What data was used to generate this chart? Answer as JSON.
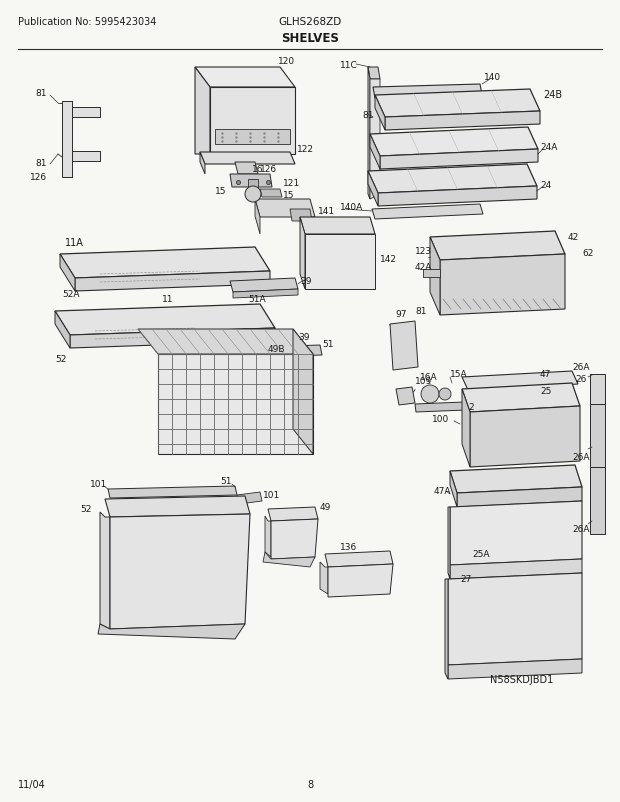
{
  "title": "SHELVES",
  "pub_no": "Publication No: 5995423034",
  "model": "GLHS268ZD",
  "diagram_id": "N58SKDJBD1",
  "date": "11/04",
  "page": "8",
  "bg_color": "#f7f7f4",
  "line_color": "#2a2a2a",
  "text_color": "#1a1a1a",
  "figsize": [
    6.2,
    8.03
  ],
  "dpi": 100
}
